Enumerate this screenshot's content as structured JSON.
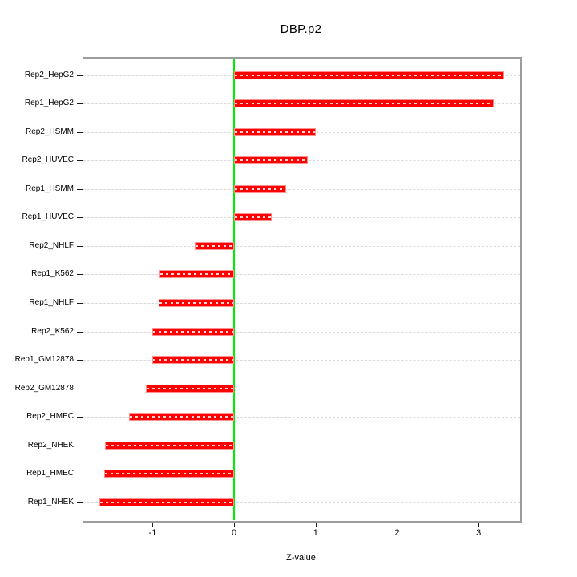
{
  "chart_data": {
    "type": "bar",
    "orientation": "horizontal",
    "title": "DBP.p2",
    "xlabel": "Z-value",
    "ylabel": "",
    "categories": [
      "Rep2_HepG2",
      "Rep1_HepG2",
      "Rep2_HSMM",
      "Rep2_HUVEC",
      "Rep1_HSMM",
      "Rep1_HUVEC",
      "Rep2_NHLF",
      "Rep1_K562",
      "Rep1_NHLF",
      "Rep2_K562",
      "Rep1_GM12878",
      "Rep2_GM12878",
      "Rep2_HMEC",
      "Rep2_NHEK",
      "Rep1_HMEC",
      "Rep1_NHEK"
    ],
    "values": [
      3.31,
      3.19,
      1.0,
      0.9,
      0.64,
      0.46,
      -0.48,
      -0.92,
      -0.93,
      -1.0,
      -1.0,
      -1.08,
      -1.29,
      -1.58,
      -1.59,
      -1.65
    ],
    "xlim": [
      -1.85,
      3.51
    ],
    "xticks": [
      -1,
      0,
      1,
      2,
      3
    ],
    "grid": true,
    "legend": null,
    "colors": {
      "bar_fill": "#ff0000",
      "bar_edge": "#ff9090",
      "zero_line": "#00ee00",
      "grid_line": "#dadada",
      "frame": "#9c9c9c",
      "axis_text": "#000000"
    }
  }
}
